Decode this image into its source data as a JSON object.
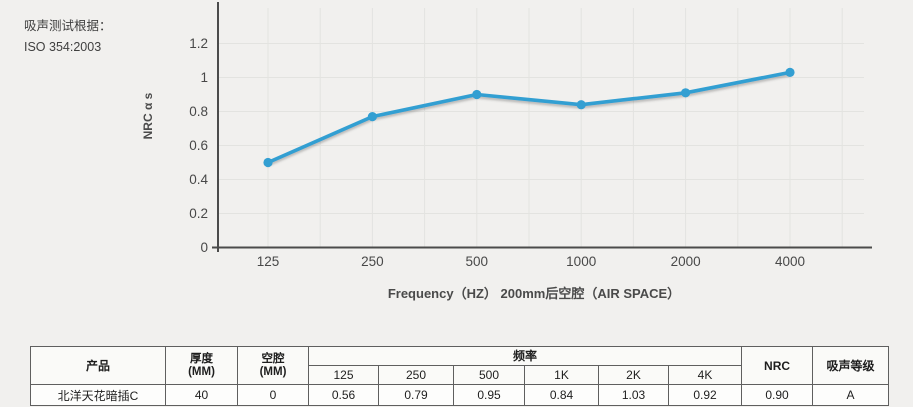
{
  "annotation": {
    "line1": "吸声测试根据：",
    "line2": "ISO 354:2003"
  },
  "chart_data": {
    "type": "line",
    "title": "",
    "x_categories": [
      "125",
      "250",
      "500",
      "1000",
      "2000",
      "4000"
    ],
    "series": [
      {
        "name": "NRC",
        "values": [
          0.5,
          0.77,
          0.9,
          0.84,
          0.91,
          1.03
        ]
      }
    ],
    "xlabel": "Frequency（HZ） 200mm后空腔（AIR SPACE）",
    "ylabel": "NRC α s",
    "yticks": [
      0,
      0.2,
      0.4,
      0.6,
      0.8,
      1,
      1.2
    ],
    "ytick_labels": [
      "0",
      "0.2",
      "0.4",
      "0.6",
      "0.8",
      "1",
      "1.2"
    ],
    "ylim": [
      0,
      1.4
    ],
    "grid": true,
    "legend": "none",
    "line_color": "#339fd2",
    "axis_color": "#4b4b4b",
    "grid_color": "#e3e3e0"
  },
  "table": {
    "headers": {
      "product": "产品",
      "thickness_l1": "厚度",
      "thickness_l2": "(MM)",
      "cavity_l1": "空腔",
      "cavity_l2": "(MM)",
      "frequency_group": "频率",
      "freq_labels": [
        "125",
        "250",
        "500",
        "1K",
        "2K",
        "4K"
      ],
      "nrc": "NRC",
      "grade": "吸声等级"
    },
    "row": {
      "product": "北洋天花暗插C",
      "thickness": "40",
      "cavity": "0",
      "freq_values": [
        "0.56",
        "0.79",
        "0.95",
        "0.84",
        "1.03",
        "0.92"
      ],
      "nrc": "0.90",
      "grade": "A"
    }
  },
  "colors": {
    "page_background": "#f1f0ee",
    "accent_line": "#339fd2"
  }
}
